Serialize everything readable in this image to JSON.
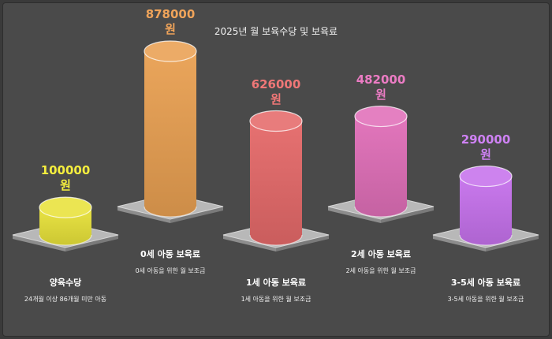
{
  "chart_data": {
    "type": "bar",
    "title": "2025년 월 보육수당 및 보육료",
    "unit": "원",
    "categories": [
      "양육수당",
      "0세 아동 보육료",
      "1세 아동 보육료",
      "2세 아동 보육료",
      "3-5세 아동 보육료"
    ],
    "descriptions": [
      "24개월 이상 86개월 미만 아동",
      "0세 아동을 위한 월 보조금",
      "1세 아동을 위한 월 보조금",
      "2세 아동을 위한 월 보조금",
      "3-5세 아동을 위한 월 보조금"
    ],
    "values": [
      100000,
      878000,
      626000,
      482000,
      290000
    ],
    "colors": [
      "#e8e23a",
      "#e9a052",
      "#e56a6a",
      "#e06fb8",
      "#c672ec"
    ],
    "value_colors": [
      "#f5ee3e",
      "#f0a45a",
      "#f07777",
      "#ec7cc4",
      "#cf82f5"
    ]
  }
}
